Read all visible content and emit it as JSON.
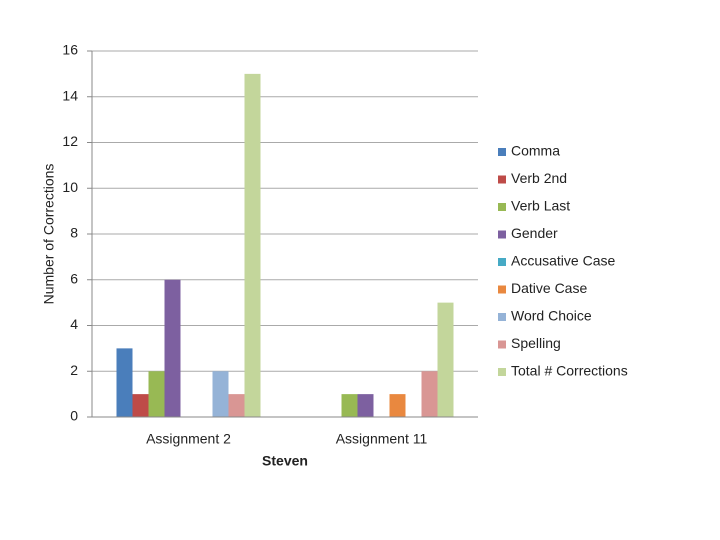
{
  "chart_data": {
    "type": "bar",
    "x_label": "Steven",
    "y_label": "Number of Corrections",
    "categories": [
      "Assignment 2",
      "Assignment 11"
    ],
    "series": [
      {
        "name": "Comma",
        "color": "#4a7ebb",
        "values": [
          3,
          0
        ]
      },
      {
        "name": "Verb 2nd",
        "color": "#be4b48",
        "values": [
          1,
          0
        ]
      },
      {
        "name": "Verb Last",
        "color": "#98b954",
        "values": [
          2,
          1
        ]
      },
      {
        "name": "Gender",
        "color": "#7d60a0",
        "values": [
          6,
          1
        ]
      },
      {
        "name": "Accusative Case",
        "color": "#46aac5",
        "values": [
          0,
          0
        ]
      },
      {
        "name": "Dative Case",
        "color": "#e9883f",
        "values": [
          0,
          1
        ]
      },
      {
        "name": "Word Choice",
        "color": "#95b3d7",
        "values": [
          2,
          0
        ]
      },
      {
        "name": "Spelling",
        "color": "#d99694",
        "values": [
          1,
          2
        ]
      },
      {
        "name": "Total # Corrections",
        "color": "#c3d69b",
        "values": [
          15,
          5
        ]
      }
    ],
    "ylim": [
      0,
      16
    ],
    "yticks": [
      0,
      2,
      4,
      6,
      8,
      10,
      12,
      14,
      16
    ],
    "grid": true,
    "legend": "right"
  }
}
